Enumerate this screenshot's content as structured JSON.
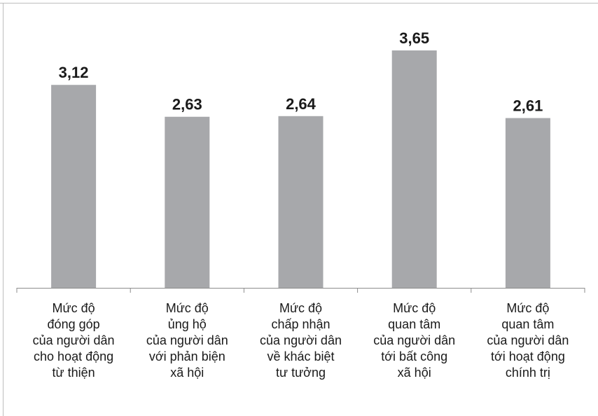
{
  "chart_data": {
    "type": "bar",
    "categories": [
      [
        "Mức độ",
        "đóng góp",
        "của người dân",
        "cho hoạt động",
        "từ thiện"
      ],
      [
        "Mức độ",
        "ủng hộ",
        "của người dân",
        "với phản biện",
        "xã hội"
      ],
      [
        "Mức độ",
        "chấp nhận",
        "của người dân",
        "về khác biệt",
        "tư tưởng"
      ],
      [
        "Mức độ",
        "quan tâm",
        "của người dân",
        "tới bất công",
        "xã hội"
      ],
      [
        "Mức độ",
        "quan tâm",
        "của người dân",
        "tới hoạt động",
        "chính trị"
      ]
    ],
    "values": [
      3.12,
      2.63,
      2.64,
      3.65,
      2.61
    ],
    "value_labels": [
      "3,12",
      "2,63",
      "2,64",
      "3,65",
      "2,61"
    ],
    "title": "",
    "xlabel": "",
    "ylabel": "",
    "ylim": [
      0,
      4.3
    ],
    "grid": false,
    "bar_color": "#a7a8ab",
    "axis_color": "#8c8c8c",
    "frame_color": "#bdbdbd"
  }
}
